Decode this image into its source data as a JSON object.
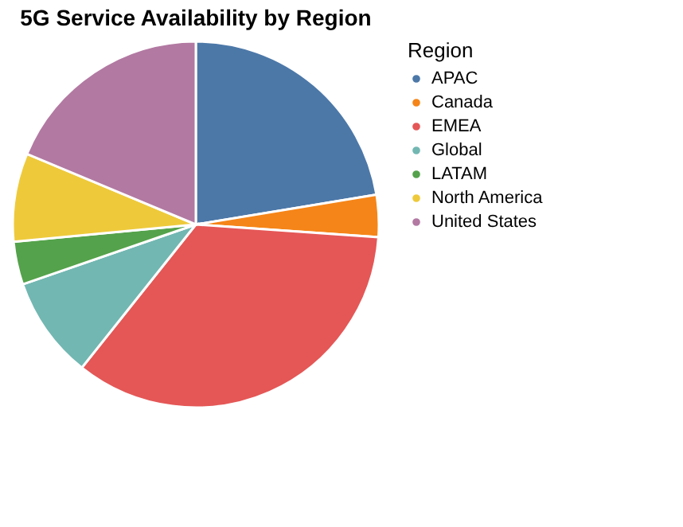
{
  "chart_data": {
    "type": "pie",
    "title": "5G Service Availability by Region",
    "legend_title": "Region",
    "legend": "right",
    "categories": [
      "APAC",
      "Canada",
      "EMEA",
      "Global",
      "LATAM",
      "North America",
      "United States"
    ],
    "values": [
      22.4,
      3.7,
      34.6,
      9.0,
      3.8,
      7.8,
      18.7
    ],
    "colors": [
      "#4c78a8",
      "#f58518",
      "#e45756",
      "#72b7b2",
      "#54a24b",
      "#eeca3b",
      "#b279a2"
    ]
  }
}
